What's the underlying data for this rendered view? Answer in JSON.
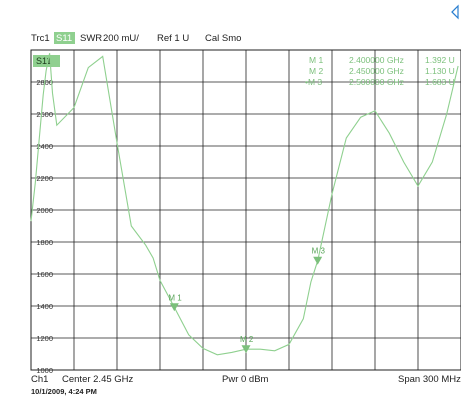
{
  "header": {
    "trace": "Trc1",
    "param": "S11",
    "format": "SWR",
    "scale": "200 mU/",
    "ref": "Ref 1 U",
    "cal": "Cal Smo"
  },
  "trace_tag": "S11",
  "markers": [
    {
      "label": "M 1",
      "name": "M 1",
      "freq": "2.400000 GHz",
      "value": "1.392 U"
    },
    {
      "label": "M 2",
      "name": "M 2",
      "freq": "2.450000 GHz",
      "value": "1.130 U"
    },
    {
      "label": "M 3",
      "name": "•M 3",
      "freq": "2.500000 GHz",
      "value": "1.683 U"
    }
  ],
  "footer": {
    "channel": "Ch1",
    "center": "Center  2.45 GHz",
    "power": "Pwr  0 dBm",
    "span": "Span  300 MHz",
    "datetime": "10/1/2009, 4:24 PM"
  },
  "colors": {
    "trace": "#8fd08f",
    "marker": "#7cc07c",
    "tag_bg": "#8fd08f",
    "grid": "#222222"
  },
  "icons": {
    "corner": "diamond-arrow-icon"
  },
  "chart_data": {
    "type": "line",
    "x_unit": "GHz",
    "xlim": [
      2.3,
      2.6
    ],
    "ylim": [
      1000,
      3000
    ],
    "yticks": [
      1000,
      1200,
      1400,
      1600,
      1800,
      2000,
      2200,
      2400,
      2600,
      2800
    ],
    "series": [
      {
        "x": [
          2.3,
          2.303,
          2.306,
          2.3085,
          2.3105,
          2.313,
          2.315,
          2.318,
          2.33,
          2.34,
          2.35,
          2.36,
          2.37,
          2.38,
          2.3852,
          2.39,
          2.4,
          2.41,
          2.42,
          2.43,
          2.44,
          2.45,
          2.46,
          2.47,
          2.48,
          2.49,
          2.4953,
          2.5,
          2.51,
          2.52,
          2.53,
          2.54,
          2.55,
          2.56,
          2.57,
          2.58,
          2.59,
          2.598
        ],
        "y": [
          1930,
          2170,
          2470,
          2720,
          2870,
          2980,
          2730,
          2530,
          2640,
          2890,
          2960,
          2420,
          1900,
          1780,
          1700,
          1560,
          1392,
          1220,
          1135,
          1095,
          1110,
          1130,
          1130,
          1120,
          1160,
          1320,
          1550,
          1683,
          2100,
          2450,
          2580,
          2620,
          2480,
          2300,
          2150,
          2300,
          2600,
          2900
        ]
      }
    ],
    "markers": [
      {
        "label": "M 1",
        "x": 2.4,
        "y": 1392
      },
      {
        "label": "M 2",
        "x": 2.45,
        "y": 1130
      },
      {
        "label": "M 3",
        "x": 2.5,
        "y": 1683
      }
    ]
  }
}
